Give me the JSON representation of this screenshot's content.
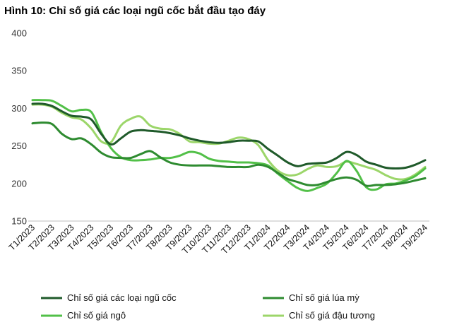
{
  "chart_data": {
    "type": "line",
    "title": "Hình 10: Chỉ số giá các loại ngũ cốc bắt đầu tạo đáy",
    "xlabel": "",
    "ylabel": "",
    "ylim": [
      150,
      400
    ],
    "yticks": [
      "400",
      "350",
      "300",
      "250",
      "200",
      "150"
    ],
    "categories": [
      "T1/2023",
      "T2/2023",
      "T3/2023",
      "T4/2023",
      "T5/2023",
      "T6/2023",
      "T7/2023",
      "T8/2023",
      "T9/2023",
      "T10/2023",
      "T11/2023",
      "T12/2023",
      "T1/2024",
      "T2/2024",
      "T3/2024",
      "T4/2024",
      "T5/2024",
      "T6/2024",
      "T7/2024",
      "T8/2024",
      "T9/2024"
    ],
    "legend_position": "bottom",
    "grid": false,
    "series": [
      {
        "name": "Chỉ số giá các loại ngũ cốc",
        "color": "#1f5a2a",
        "x": [
          0,
          0.5,
          1,
          1.5,
          2,
          2.5,
          3,
          3.5,
          4,
          4.5,
          5,
          5.5,
          6,
          6.5,
          7,
          7.5,
          8,
          8.5,
          9,
          9.5,
          10,
          10.5,
          11,
          11.5,
          12,
          12.5,
          13,
          13.5,
          14,
          14.5,
          15,
          15.5,
          16,
          16.5,
          17,
          17.5,
          18,
          18.5,
          19,
          19.5,
          20
        ],
        "values": [
          306,
          306,
          303,
          296,
          290,
          289,
          285,
          266,
          252,
          260,
          269,
          271,
          270,
          269,
          267,
          264,
          260,
          257,
          255,
          254,
          255,
          257,
          257,
          256,
          246,
          237,
          228,
          223,
          226,
          227,
          228,
          234,
          242,
          238,
          229,
          225,
          221,
          220,
          221,
          225,
          231
        ]
      },
      {
        "name": "Chỉ số giá lúa mỳ",
        "color": "#2e8b30",
        "x": [
          0,
          0.5,
          1,
          1.5,
          2,
          2.5,
          3,
          3.5,
          4,
          4.5,
          5,
          5.5,
          6,
          6.5,
          7,
          7.5,
          8,
          8.5,
          9,
          9.5,
          10,
          10.5,
          11,
          11.5,
          12,
          12.5,
          13,
          13.5,
          14,
          14.5,
          15,
          15.5,
          16,
          16.5,
          17,
          17.5,
          18,
          18.5,
          19,
          19.5,
          20
        ],
        "values": [
          280,
          281,
          279,
          266,
          259,
          260,
          252,
          241,
          235,
          234,
          234,
          239,
          243,
          235,
          228,
          225,
          224,
          224,
          224,
          223,
          222,
          222,
          222,
          225,
          222,
          214,
          206,
          202,
          198,
          198,
          202,
          206,
          208,
          205,
          197,
          198,
          198,
          199,
          201,
          204,
          207
        ]
      },
      {
        "name": "Chỉ số giá ngô",
        "color": "#52c048",
        "x": [
          0,
          0.5,
          1,
          1.5,
          2,
          2.5,
          3,
          3.5,
          4,
          4.5,
          5,
          5.5,
          6,
          6.5,
          7,
          7.5,
          8,
          8.5,
          9,
          9.5,
          10,
          10.5,
          11,
          11.5,
          12,
          12.5,
          13,
          13.5,
          14,
          14.5,
          15,
          15.5,
          16,
          16.5,
          17,
          17.5,
          18,
          18.5,
          19,
          19.5,
          20
        ],
        "values": [
          311,
          311,
          310,
          303,
          296,
          298,
          295,
          268,
          247,
          235,
          231,
          231,
          232,
          234,
          234,
          237,
          242,
          240,
          233,
          230,
          229,
          228,
          228,
          227,
          224,
          213,
          203,
          194,
          190,
          194,
          200,
          214,
          230,
          217,
          195,
          192,
          199,
          200,
          204,
          210,
          220
        ]
      },
      {
        "name": "Chỉ số giá đậu tương",
        "color": "#9cd66a",
        "x": [
          0,
          0.5,
          1,
          1.5,
          2,
          2.5,
          3,
          3.5,
          4,
          4.5,
          5,
          5.5,
          6,
          6.5,
          7,
          7.5,
          8,
          8.5,
          9,
          9.5,
          10,
          10.5,
          11,
          11.5,
          12,
          12.5,
          13,
          13.5,
          14,
          14.5,
          15,
          15.5,
          16,
          16.5,
          17,
          17.5,
          18,
          18.5,
          19,
          19.5,
          20
        ],
        "values": [
          305,
          305,
          302,
          294,
          288,
          285,
          273,
          256,
          255,
          277,
          286,
          289,
          277,
          273,
          272,
          266,
          256,
          255,
          253,
          253,
          257,
          261,
          259,
          251,
          231,
          217,
          211,
          212,
          219,
          224,
          222,
          223,
          229,
          226,
          222,
          218,
          211,
          206,
          206,
          212,
          222
        ]
      }
    ]
  }
}
